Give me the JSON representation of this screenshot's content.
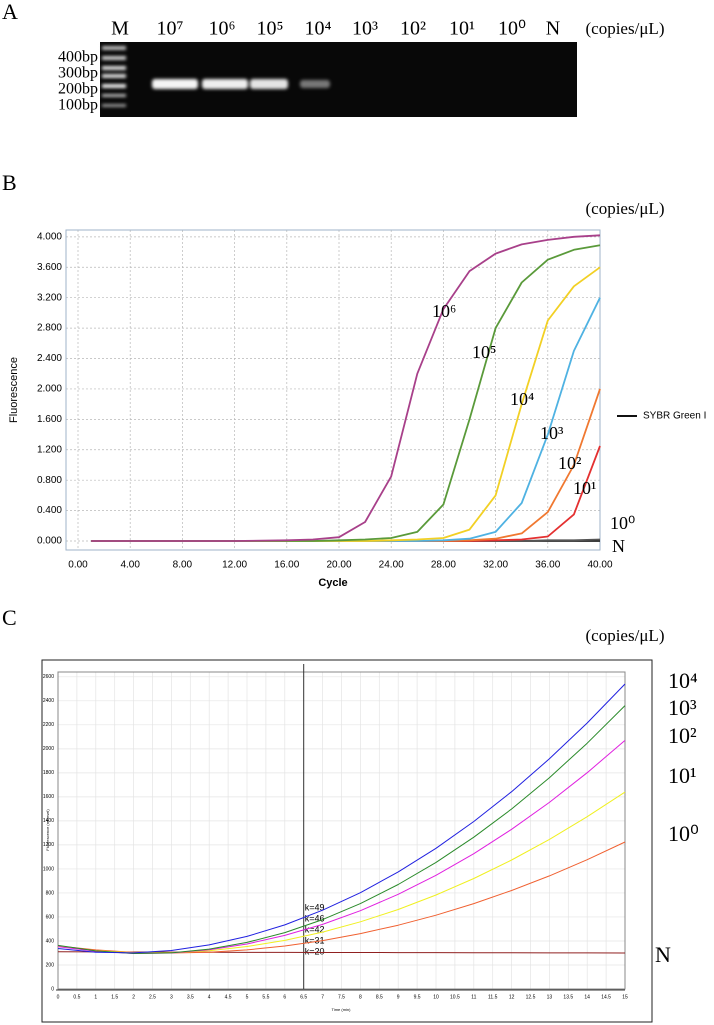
{
  "gel": {
    "panel": "A",
    "lanes": [
      "M",
      "10⁷",
      "10⁶",
      "10⁵",
      "10⁴",
      "10³",
      "10²",
      "10¹",
      "10⁰",
      "N"
    ],
    "unit": "(copies/μL)",
    "ladder": [
      "400bp",
      "300bp",
      "200bp",
      "100bp"
    ]
  },
  "chart_data": [
    {
      "type": "line",
      "panel": "B",
      "unit": "(copies/μL)",
      "y_label": "Fluorescence",
      "x_label": "Cycle",
      "legend_label": "SYBR Green I",
      "legend": "right",
      "grid": true,
      "x": [
        1,
        4,
        8,
        12,
        16,
        18,
        20,
        22,
        24,
        26,
        28,
        30,
        32,
        34,
        36,
        38,
        40
      ],
      "series": [
        {
          "name": "10⁶",
          "color": "#a8408a",
          "values": [
            0,
            0,
            0,
            0,
            0.01,
            0.02,
            0.05,
            0.25,
            0.85,
            2.2,
            3.05,
            3.55,
            3.78,
            3.9,
            3.96,
            4.0,
            4.02
          ]
        },
        {
          "name": "10⁵",
          "color": "#5a9a3a",
          "values": [
            0,
            0,
            0,
            0,
            0,
            0,
            0.01,
            0.02,
            0.04,
            0.12,
            0.48,
            1.6,
            2.8,
            3.4,
            3.7,
            3.83,
            3.89
          ]
        },
        {
          "name": "10⁴",
          "color": "#f2d024",
          "values": [
            0,
            0,
            0,
            0,
            0,
            0,
            0,
            0,
            0.01,
            0.02,
            0.04,
            0.15,
            0.6,
            1.8,
            2.9,
            3.35,
            3.6
          ]
        },
        {
          "name": "10³",
          "color": "#4fb2e2",
          "values": [
            0,
            0,
            0,
            0,
            0,
            0,
            0,
            0,
            0,
            0,
            0.01,
            0.03,
            0.12,
            0.5,
            1.4,
            2.5,
            3.2
          ]
        },
        {
          "name": "10²",
          "color": "#f07830",
          "values": [
            0,
            0,
            0,
            0,
            0,
            0,
            0,
            0,
            0,
            0,
            0,
            0.01,
            0.03,
            0.1,
            0.38,
            1.0,
            2.0
          ]
        },
        {
          "name": "10¹",
          "color": "#e43030",
          "values": [
            0,
            0,
            0,
            0,
            0,
            0,
            0,
            0,
            0,
            0,
            0,
            0,
            0.01,
            0.02,
            0.06,
            0.35,
            1.25
          ]
        },
        {
          "name": "10⁰",
          "color": "#555555",
          "values": [
            0,
            0,
            0,
            0,
            0,
            0,
            0,
            0,
            0,
            0,
            0,
            0,
            0,
            0,
            0.01,
            0.01,
            0.02
          ]
        },
        {
          "name": "N",
          "color": "#222222",
          "values": [
            0,
            0,
            0,
            0,
            0,
            0,
            0,
            0,
            0,
            0,
            0,
            0,
            0,
            0,
            0,
            0,
            0
          ]
        }
      ],
      "xlim": [
        -0.92,
        40
      ],
      "ylim": [
        -0.118,
        4.09
      ],
      "xticks": [
        {
          "value": 0,
          "label": "0.00"
        },
        {
          "value": 4,
          "label": "4.00"
        },
        {
          "value": 8,
          "label": "8.00"
        },
        {
          "value": 12,
          "label": "12.00"
        },
        {
          "value": 16,
          "label": "16.00"
        },
        {
          "value": 20,
          "label": "20.00"
        },
        {
          "value": 24,
          "label": "24.00"
        },
        {
          "value": 28,
          "label": "28.00"
        },
        {
          "value": 32,
          "label": "32.00"
        },
        {
          "value": 36,
          "label": "36.00"
        },
        {
          "value": 40,
          "label": "40.00"
        }
      ],
      "yticks": [
        {
          "value": 0,
          "label": "0.000"
        },
        {
          "value": 0.4,
          "label": "0.400"
        },
        {
          "value": 0.8,
          "label": "0.800"
        },
        {
          "value": 1.2,
          "label": "1.200"
        },
        {
          "value": 1.6,
          "label": "1.600"
        },
        {
          "value": 2,
          "label": "2.000"
        },
        {
          "value": 2.4,
          "label": "2.400"
        },
        {
          "value": 2.8,
          "label": "2.800"
        },
        {
          "value": 3.2,
          "label": "3.200"
        },
        {
          "value": 3.6,
          "label": "3.600"
        },
        {
          "value": 4,
          "label": "4.000"
        }
      ]
    },
    {
      "type": "line",
      "panel": "C",
      "unit": "(copies/μL)",
      "y_label": "Fluorescence (mRevel)",
      "x_label": "Time (min)",
      "grid": true,
      "vline": 6.5,
      "annotations": [
        "k=49",
        "k=46",
        "k=42",
        "k=31",
        "k=20"
      ],
      "x": [
        0,
        1,
        2,
        3,
        4,
        5,
        6,
        7,
        8,
        9,
        10,
        11,
        12,
        13,
        14,
        15
      ],
      "series": [
        {
          "name": "10⁴",
          "color": "#2020e0",
          "values": [
            337,
            306,
            301,
            321,
            367,
            438,
            534,
            656,
            802,
            975,
            1172,
            1395,
            1643,
            1917,
            2215,
            2540
          ]
        },
        {
          "name": "10³",
          "color": "#2a8a2a",
          "values": [
            363,
            317,
            296,
            301,
            332,
            388,
            470,
            578,
            711,
            870,
            1054,
            1264,
            1499,
            1760,
            2047,
            2360
          ]
        },
        {
          "name": "10²",
          "color": "#e020e0",
          "values": [
            353,
            314,
            296,
            300,
            327,
            375,
            446,
            538,
            652,
            789,
            947,
            1127,
            1330,
            1554,
            1801,
            2070
          ]
        },
        {
          "name": "10¹",
          "color": "#f0f020",
          "values": [
            354,
            319,
            302,
            302,
            319,
            354,
            405,
            474,
            560,
            662,
            783,
            920,
            1074,
            1246,
            1435,
            1640
          ]
        },
        {
          "name": "10⁰",
          "color": "#f06030",
          "values": [
            358,
            326,
            306,
            300,
            306,
            326,
            358,
            403,
            461,
            531,
            615,
            711,
            820,
            942,
            1077,
            1224
          ]
        },
        {
          "name": "N",
          "color": "#902020",
          "values": [
            310,
            309,
            308,
            307,
            306,
            305,
            305,
            304,
            304,
            303,
            303,
            302,
            302,
            301,
            301,
            300
          ]
        }
      ],
      "xlim": [
        0,
        15
      ],
      "ylim": [
        0,
        2640
      ],
      "xticks": [
        0,
        0.5,
        1,
        1.5,
        2,
        2.5,
        3,
        3.5,
        4,
        4.5,
        5,
        5.5,
        6,
        6.5,
        7,
        7.5,
        8,
        8.5,
        9,
        9.5,
        10,
        10.5,
        11,
        11.5,
        12,
        12.5,
        13,
        13.5,
        14,
        14.5,
        15
      ],
      "yticks": [
        0,
        200,
        400,
        600,
        800,
        1000,
        1200,
        1400,
        1600,
        1800,
        2000,
        2200,
        2400,
        2600
      ]
    }
  ]
}
